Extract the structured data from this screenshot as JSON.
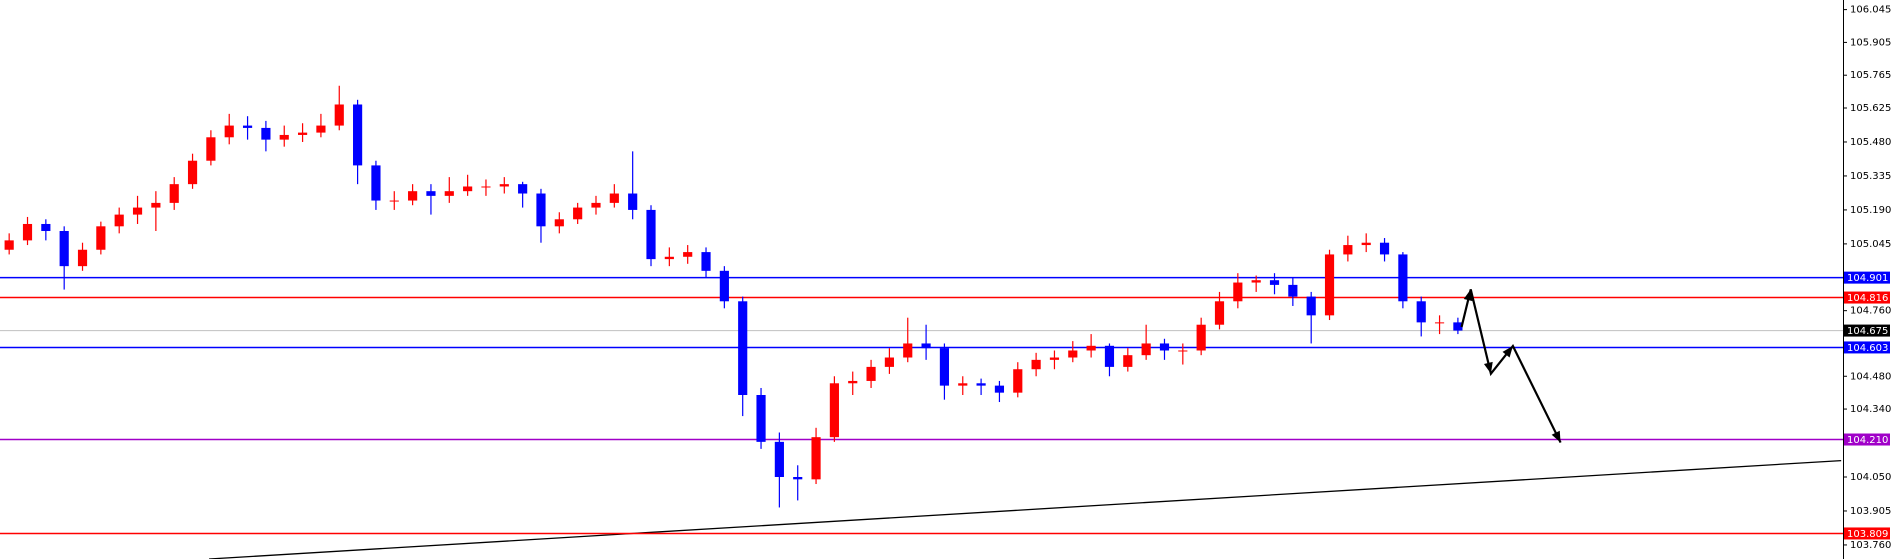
{
  "chart_data": {
    "type": "candlestick",
    "up_color": "#ff0000",
    "down_color": "#0000ff",
    "xlim": [
      -0.5,
      100
    ],
    "ylim": [
      103.7,
      106.086
    ],
    "yticks": [
      106.045,
      105.905,
      105.765,
      105.625,
      {
        "value": 105.48,
        "label": "105.480"
      },
      105.335,
      {
        "value": 105.19,
        "label": "105.190"
      },
      105.045,
      {
        "value": 104.76,
        "label": "104.760"
      },
      {
        "value": 104.48,
        "label": "104.480"
      },
      {
        "value": 104.34,
        "label": "104.340"
      },
      {
        "value": 104.05,
        "label": "104.050"
      },
      103.905,
      {
        "value": 103.76,
        "label": "103.760"
      }
    ],
    "ohlc": [
      [
        105.02,
        105.09,
        105.0,
        105.06
      ],
      [
        105.06,
        105.16,
        105.04,
        105.13
      ],
      [
        105.13,
        105.15,
        105.06,
        105.1
      ],
      [
        105.1,
        105.12,
        104.85,
        104.95
      ],
      [
        104.95,
        105.05,
        104.93,
        105.02
      ],
      [
        105.02,
        105.14,
        105.0,
        105.12
      ],
      [
        105.12,
        105.2,
        105.09,
        105.17
      ],
      [
        105.17,
        105.25,
        105.13,
        105.2
      ],
      [
        105.2,
        105.27,
        105.1,
        105.22
      ],
      [
        105.22,
        105.33,
        105.19,
        105.3
      ],
      [
        105.3,
        105.43,
        105.28,
        105.4
      ],
      [
        105.4,
        105.53,
        105.38,
        105.5
      ],
      [
        105.5,
        105.6,
        105.47,
        105.55
      ],
      [
        105.55,
        105.59,
        105.49,
        105.54
      ],
      [
        105.54,
        105.57,
        105.44,
        105.49
      ],
      [
        105.49,
        105.55,
        105.46,
        105.51
      ],
      [
        105.51,
        105.56,
        105.48,
        105.52
      ],
      [
        105.52,
        105.6,
        105.5,
        105.55
      ],
      [
        105.55,
        105.72,
        105.53,
        105.64
      ],
      [
        105.64,
        105.66,
        105.3,
        105.38
      ],
      [
        105.38,
        105.4,
        105.19,
        105.23
      ],
      [
        105.23,
        105.27,
        105.19,
        105.23
      ],
      [
        105.23,
        105.3,
        105.21,
        105.27
      ],
      [
        105.27,
        105.3,
        105.17,
        105.25
      ],
      [
        105.25,
        105.33,
        105.22,
        105.27
      ],
      [
        105.27,
        105.34,
        105.25,
        105.29
      ],
      [
        105.29,
        105.32,
        105.25,
        105.29
      ],
      [
        105.29,
        105.33,
        105.26,
        105.3
      ],
      [
        105.3,
        105.31,
        105.2,
        105.26
      ],
      [
        105.26,
        105.28,
        105.05,
        105.12
      ],
      [
        105.12,
        105.18,
        105.09,
        105.15
      ],
      [
        105.15,
        105.22,
        105.13,
        105.2
      ],
      [
        105.2,
        105.25,
        105.17,
        105.22
      ],
      [
        105.22,
        105.3,
        105.2,
        105.26
      ],
      [
        105.26,
        105.44,
        105.15,
        105.19
      ],
      [
        105.19,
        105.21,
        104.95,
        104.98
      ],
      [
        104.98,
        105.03,
        104.95,
        104.99
      ],
      [
        104.99,
        105.04,
        104.96,
        105.01
      ],
      [
        105.01,
        105.03,
        104.9,
        104.93
      ],
      [
        104.93,
        104.95,
        104.77,
        104.8
      ],
      [
        104.8,
        104.82,
        104.31,
        104.4
      ],
      [
        104.4,
        104.43,
        104.17,
        104.2
      ],
      [
        104.2,
        104.24,
        103.92,
        104.05
      ],
      [
        104.05,
        104.1,
        103.95,
        104.04
      ],
      [
        104.04,
        104.26,
        104.02,
        104.22
      ],
      [
        104.22,
        104.48,
        104.2,
        104.45
      ],
      [
        104.45,
        104.5,
        104.4,
        104.46
      ],
      [
        104.46,
        104.55,
        104.43,
        104.52
      ],
      [
        104.52,
        104.6,
        104.49,
        104.56
      ],
      [
        104.56,
        104.73,
        104.54,
        104.62
      ],
      [
        104.62,
        104.7,
        104.55,
        104.6
      ],
      [
        104.6,
        104.62,
        104.38,
        104.44
      ],
      [
        104.44,
        104.48,
        104.4,
        104.45
      ],
      [
        104.45,
        104.47,
        104.4,
        104.44
      ],
      [
        104.44,
        104.46,
        104.37,
        104.41
      ],
      [
        104.41,
        104.54,
        104.39,
        104.51
      ],
      [
        104.51,
        104.58,
        104.48,
        104.55
      ],
      [
        104.55,
        104.59,
        104.51,
        104.56
      ],
      [
        104.56,
        104.63,
        104.54,
        104.59
      ],
      [
        104.59,
        104.66,
        104.56,
        104.61
      ],
      [
        104.61,
        104.62,
        104.48,
        104.52
      ],
      [
        104.52,
        104.6,
        104.5,
        104.57
      ],
      [
        104.57,
        104.7,
        104.55,
        104.62
      ],
      [
        104.62,
        104.64,
        104.55,
        104.59
      ],
      [
        104.59,
        104.62,
        104.53,
        104.59
      ],
      [
        104.59,
        104.73,
        104.57,
        104.7
      ],
      [
        104.7,
        104.84,
        104.68,
        104.8
      ],
      [
        104.8,
        104.92,
        104.77,
        104.88
      ],
      [
        104.88,
        104.91,
        104.84,
        104.89
      ],
      [
        104.89,
        104.92,
        104.83,
        104.87
      ],
      [
        104.87,
        104.9,
        104.78,
        104.82
      ],
      [
        104.82,
        104.84,
        104.62,
        104.74
      ],
      [
        104.74,
        105.02,
        104.72,
        105.0
      ],
      [
        105.0,
        105.08,
        104.97,
        105.04
      ],
      [
        105.04,
        105.09,
        105.01,
        105.05
      ],
      [
        105.05,
        105.07,
        104.97,
        105.0
      ],
      [
        105.0,
        105.01,
        104.77,
        104.8
      ],
      [
        104.8,
        104.82,
        104.65,
        104.71
      ],
      [
        104.71,
        104.74,
        104.66,
        104.71
      ],
      [
        104.71,
        104.73,
        104.66,
        104.675
      ]
    ],
    "levels": [
      {
        "value": 104.901,
        "color": "#0000ff"
      },
      {
        "value": 104.816,
        "color": "#ff0000"
      },
      {
        "value": 104.603,
        "color": "#0000ff"
      },
      {
        "value": 104.21,
        "label": "104.210",
        "color": "#a000c8"
      },
      {
        "value": 103.809,
        "color": "#ff0000"
      }
    ],
    "last_price": 104.675,
    "last_price_color": "#c0c0c0",
    "trendline": {
      "x": [
        10.9,
        99.9
      ],
      "y": [
        103.7,
        104.12
      ],
      "color": "#000000"
    },
    "forecast": {
      "x": [
        79.2,
        79.7,
        80.8,
        82.0,
        84.6
      ],
      "y": [
        104.69,
        104.851,
        104.491,
        104.609,
        104.197
      ],
      "color": "#000000"
    }
  }
}
